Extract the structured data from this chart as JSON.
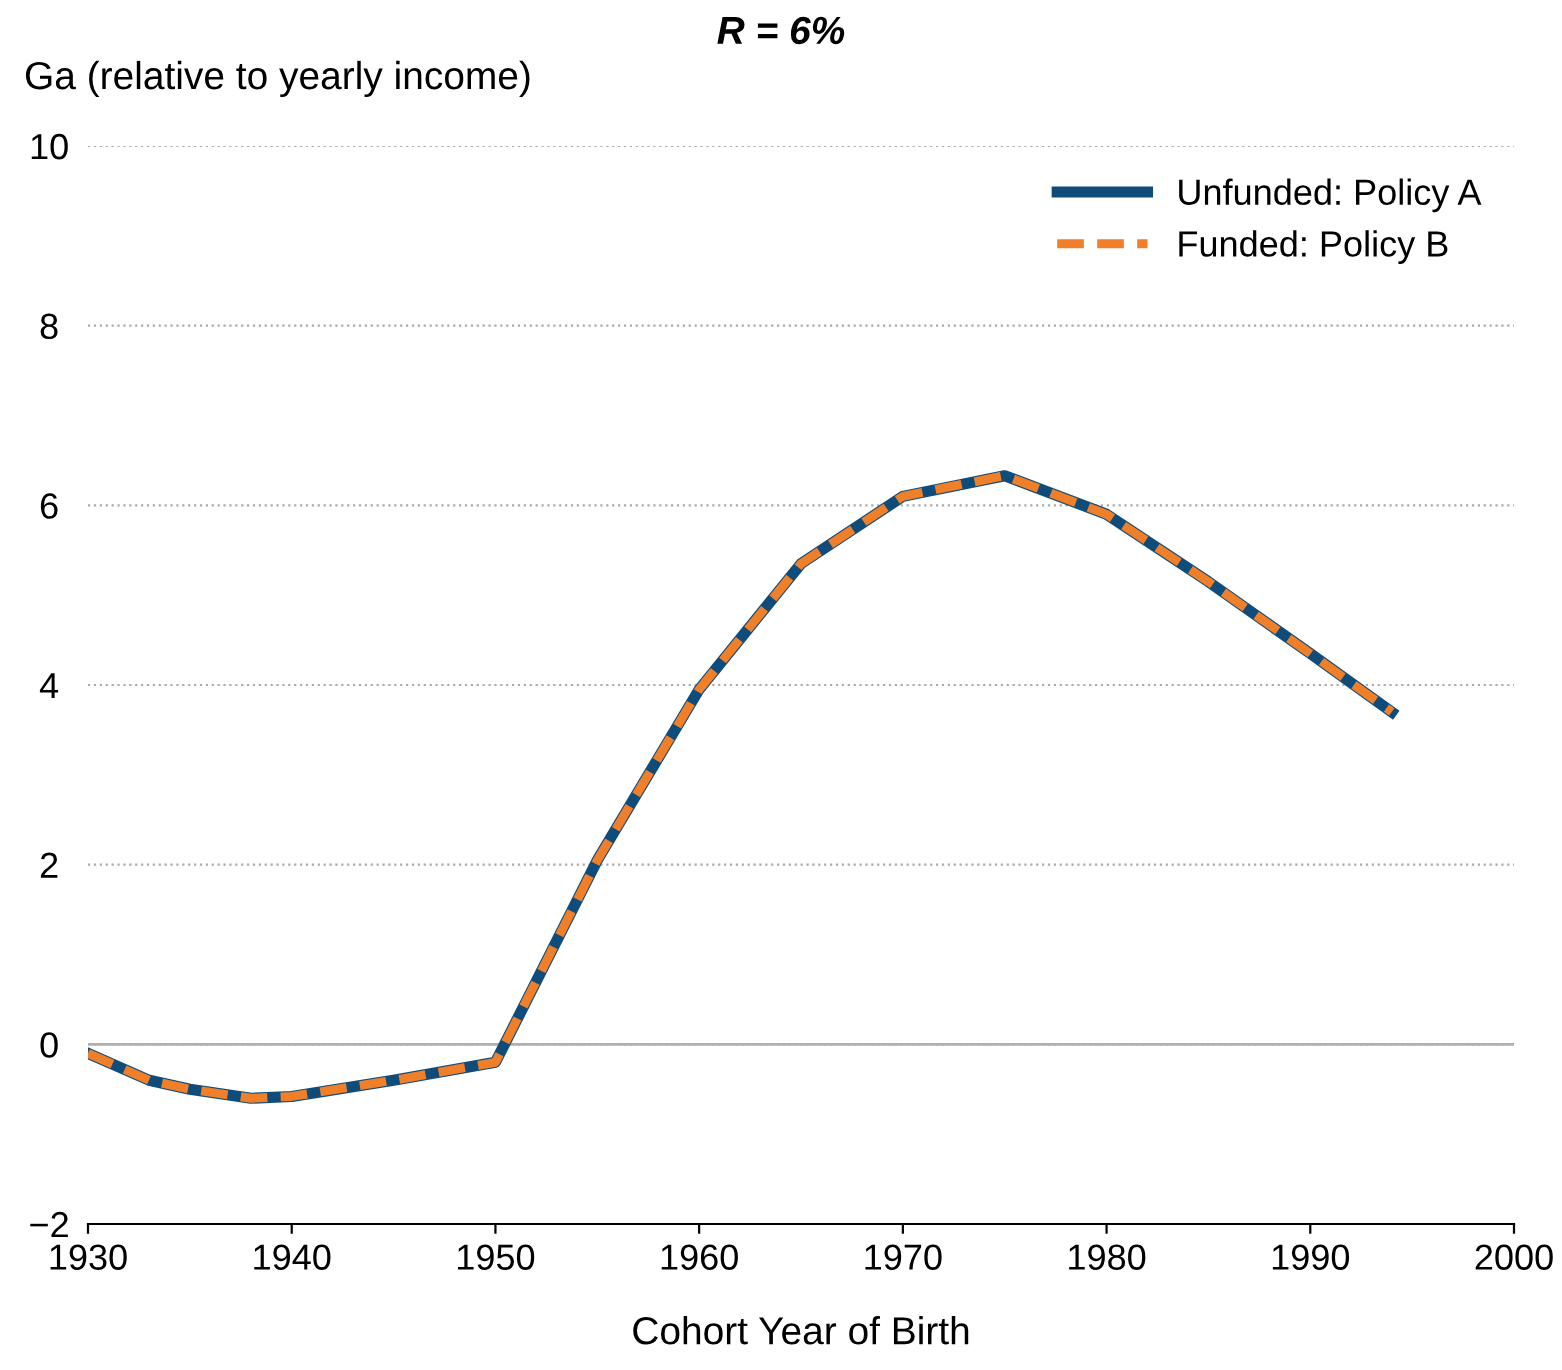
{
  "chart_data": {
    "type": "line",
    "title": "R = 6%",
    "ylabel": "Ga (relative to yearly income)",
    "xlabel": "Cohort Year of Birth",
    "xlim": [
      1930,
      2000
    ],
    "xticks": [
      1930,
      1940,
      1950,
      1960,
      1970,
      1980,
      1990,
      2000
    ],
    "ylim": [
      -2,
      10
    ],
    "yticks": [
      {
        "value": -2,
        "label": "−2"
      },
      0,
      2,
      4,
      6,
      8,
      10
    ],
    "grid": "y",
    "legend": "top right",
    "ref_lines": [
      {
        "axis": "y",
        "value": 0,
        "color": "#b0b0b0",
        "line_style": "solid"
      }
    ],
    "series": [
      {
        "name": "Unfunded: Policy A",
        "color": "#0f4c7a",
        "line_style": "solid",
        "x": [
          1930,
          1933,
          1935,
          1938,
          1940,
          1945,
          1950,
          1955,
          1960,
          1965,
          1970,
          1975,
          1980,
          1985,
          1990,
          1994
        ],
        "values": [
          -0.1,
          -0.4,
          -0.5,
          -0.6,
          -0.58,
          -0.4,
          -0.2,
          2.05,
          3.95,
          5.35,
          6.1,
          6.33,
          5.9,
          5.15,
          4.35,
          3.7
        ]
      },
      {
        "name": "Funded: Policy B",
        "color": "#f07f2a",
        "line_style": "dashed",
        "x": [
          1930,
          1933,
          1935,
          1938,
          1940,
          1945,
          1950,
          1955,
          1960,
          1965,
          1970,
          1975,
          1980,
          1985,
          1990,
          1994
        ],
        "values": [
          -0.1,
          -0.4,
          -0.5,
          -0.6,
          -0.58,
          -0.4,
          -0.2,
          2.05,
          3.95,
          5.35,
          6.1,
          6.33,
          5.9,
          5.15,
          4.35,
          3.7
        ]
      }
    ]
  }
}
